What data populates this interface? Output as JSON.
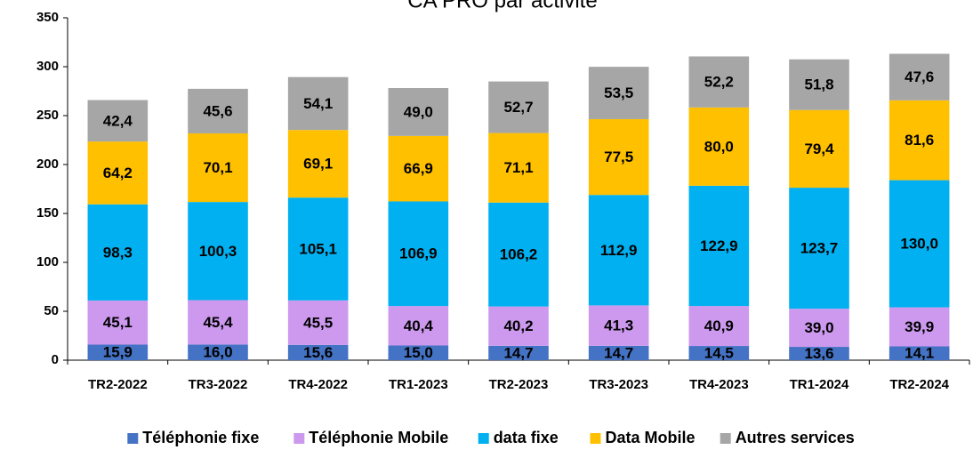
{
  "chart_data": {
    "type": "stacked_bar",
    "title": "CA PRO par activité",
    "categories": [
      "TR2-2022",
      "TR3-2022",
      "TR4-2022",
      "TR1-2023",
      "TR2-2023",
      "TR3-2023",
      "TR4-2023",
      "TR1-2024",
      "TR2-2024"
    ],
    "series": [
      {
        "name": "Téléphonie fixe",
        "color": "#4472c4",
        "values": [
          15.9,
          16.0,
          15.6,
          15.0,
          14.7,
          14.7,
          14.5,
          13.6,
          14.1
        ],
        "value_labels": [
          "15,9",
          "16,0",
          "15,6",
          "15,0",
          "14,7",
          "14,7",
          "14,5",
          "13,6",
          "14,1"
        ]
      },
      {
        "name": "Téléphonie Mobile",
        "color": "#cc99ee",
        "values": [
          45.1,
          45.4,
          45.5,
          40.4,
          40.2,
          41.3,
          40.9,
          39.0,
          39.9
        ],
        "value_labels": [
          "45,1",
          "45,4",
          "45,5",
          "40,4",
          "40,2",
          "41,3",
          "40,9",
          "39,0",
          "39,9"
        ]
      },
      {
        "name": "data fixe",
        "color": "#00b0f0",
        "values": [
          98.3,
          100.3,
          105.1,
          106.9,
          106.2,
          112.9,
          122.9,
          123.7,
          130.0
        ],
        "value_labels": [
          "98,3",
          "100,3",
          "105,1",
          "106,9",
          "106,2",
          "112,9",
          "122,9",
          "123,7",
          "130,0"
        ]
      },
      {
        "name": "Data Mobile",
        "color": "#ffc000",
        "values": [
          64.2,
          70.1,
          69.1,
          66.9,
          71.1,
          77.5,
          80.0,
          79.4,
          81.6
        ],
        "value_labels": [
          "64,2",
          "70,1",
          "69,1",
          "66,9",
          "71,1",
          "77,5",
          "80,0",
          "79,4",
          "81,6"
        ]
      },
      {
        "name": "Autres services",
        "color": "#a6a6a6",
        "values": [
          42.4,
          45.6,
          54.1,
          49.0,
          52.7,
          53.5,
          52.2,
          51.8,
          47.6
        ],
        "value_labels": [
          "42,4",
          "45,6",
          "54,1",
          "49,0",
          "52,7",
          "53,5",
          "52,2",
          "51,8",
          "47,6"
        ]
      }
    ],
    "ylim": [
      0,
      350
    ],
    "yticks": [
      0,
      50,
      100,
      150,
      200,
      250,
      300,
      350
    ],
    "legend": "bottom"
  }
}
